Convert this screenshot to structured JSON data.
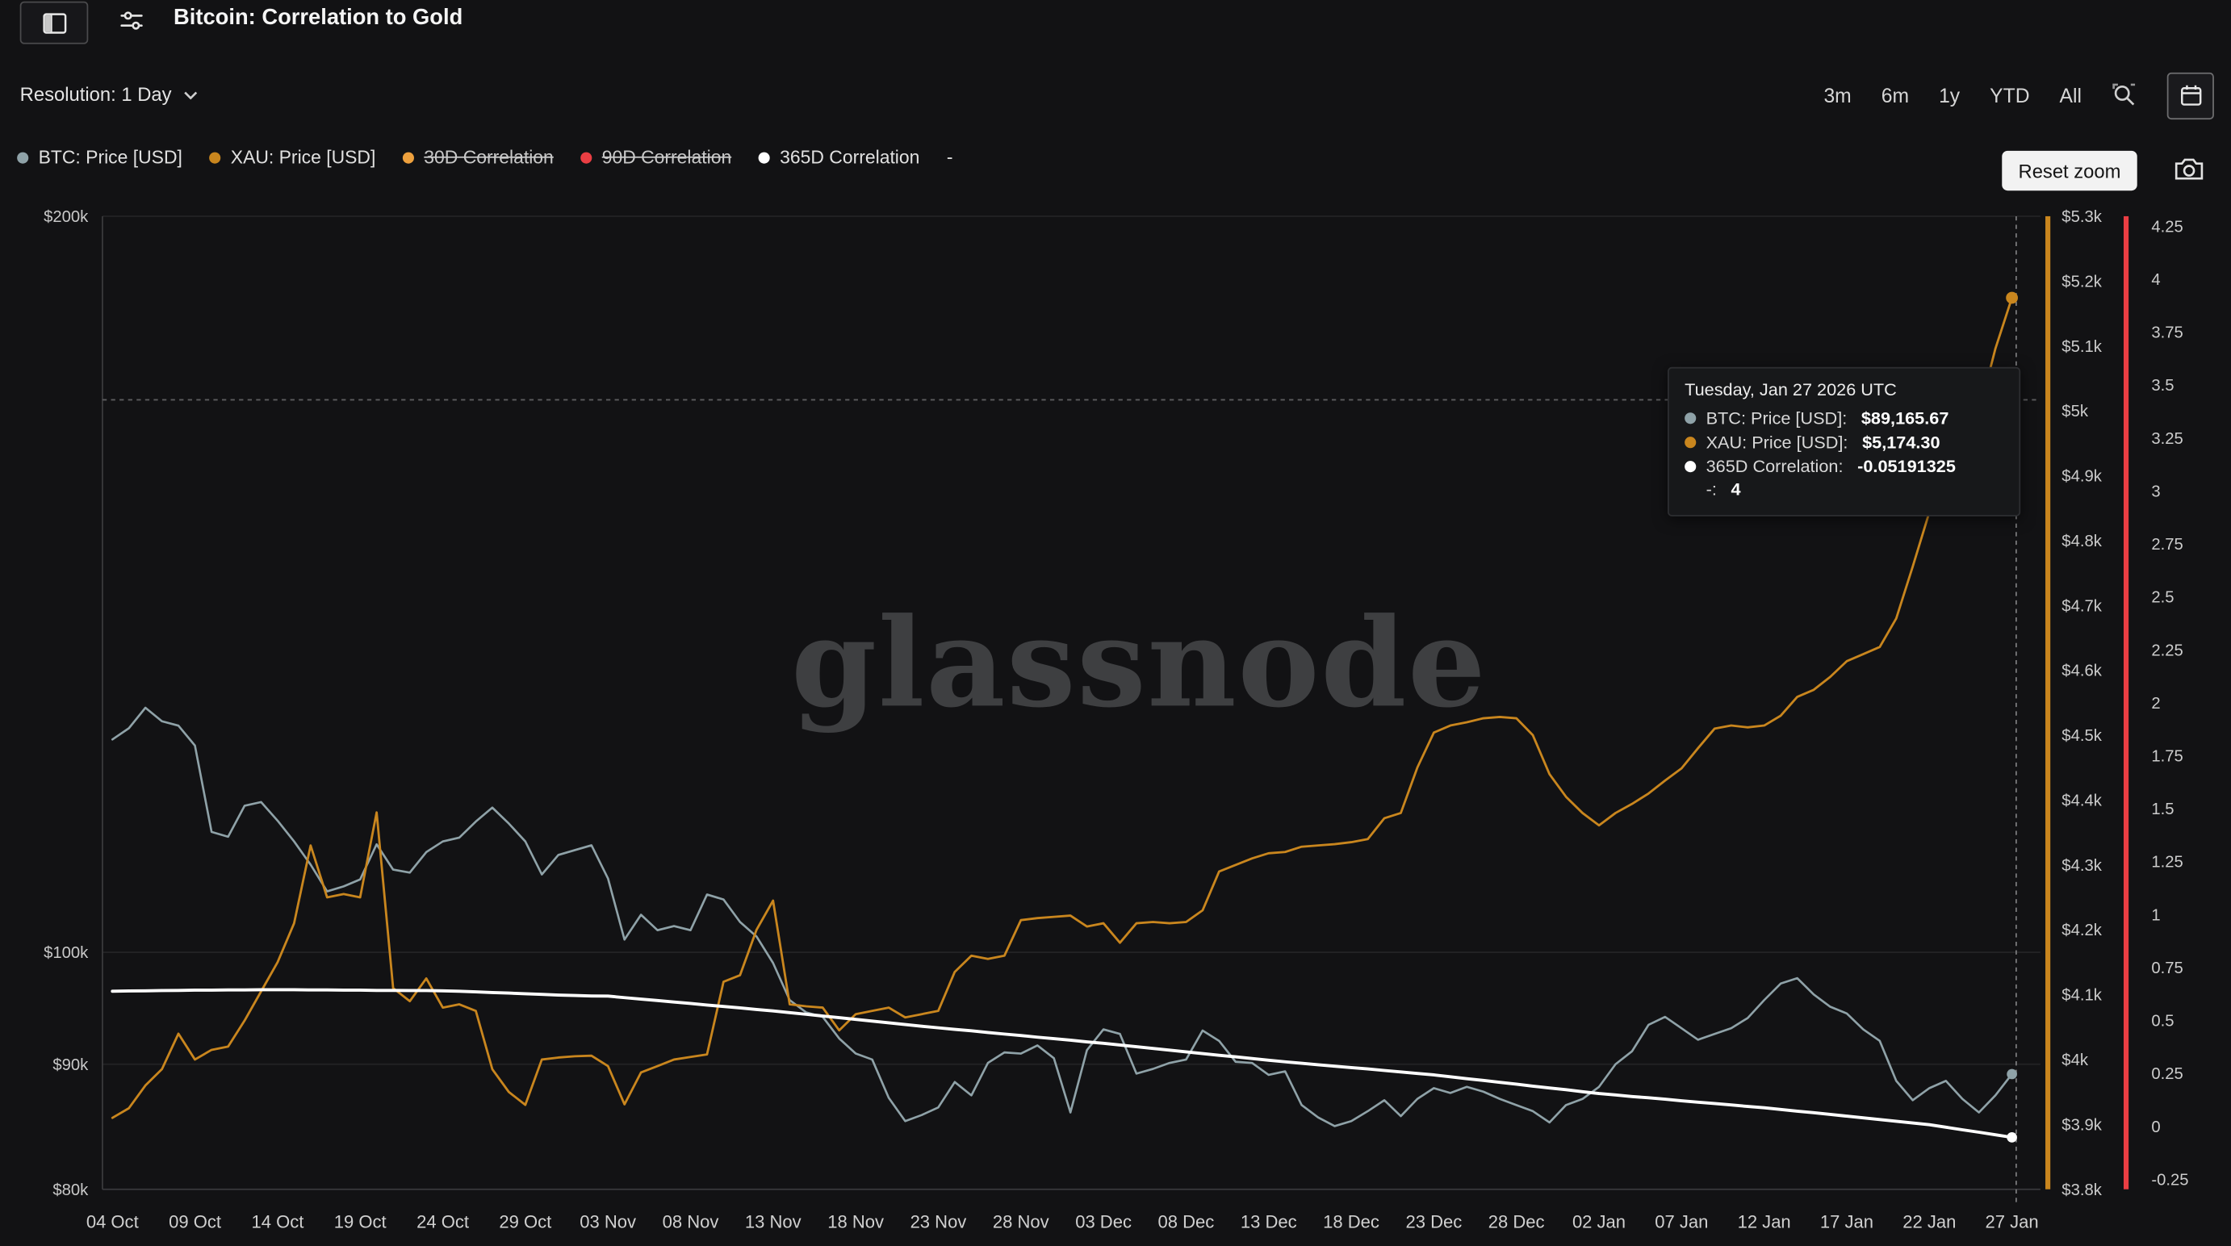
{
  "header": {
    "title": "Bitcoin: Correlation to Gold"
  },
  "toolbar": {
    "resolution_label": "Resolution: 1 Day",
    "ranges": [
      "3m",
      "6m",
      "1y",
      "YTD",
      "All"
    ],
    "reset_zoom_label": "Reset zoom",
    "icons": [
      "sidebar-toggle-icon",
      "chart-settings-icon",
      "chevron-down-icon",
      "zoom-range-icon",
      "calendar-icon",
      "camera-icon"
    ]
  },
  "legend": {
    "items": [
      {
        "label": "BTC: Price [USD]",
        "color": "#8fa2a8",
        "disabled": false
      },
      {
        "label": "XAU: Price [USD]",
        "color": "#c9861e",
        "disabled": false
      },
      {
        "label": "30D Correlation",
        "color": "#eda03d",
        "disabled": true
      },
      {
        "label": "90D Correlation",
        "color": "#ea3e43",
        "disabled": true
      },
      {
        "label": "365D Correlation",
        "color": "#ffffff",
        "disabled": false
      },
      {
        "label": "-",
        "color": "",
        "disabled": false
      }
    ]
  },
  "tooltip": {
    "date": "Tuesday, Jan 27 2026 UTC",
    "rows": [
      {
        "label": "BTC: Price [USD]:",
        "value": "$89,165.67",
        "color": "#8fa2a8"
      },
      {
        "label": "XAU: Price [USD]:",
        "value": "$5,174.30",
        "color": "#c9861e"
      },
      {
        "label": "365D Correlation:",
        "value": "-0.05191325",
        "color": "#ffffff"
      },
      {
        "label": "-:",
        "value": "4",
        "color": ""
      }
    ]
  },
  "watermark": "glassnode",
  "chart_data": {
    "type": "line",
    "start_date": "2025-10-04",
    "end_date": "2026-01-27",
    "resolution": "1 Day",
    "x_tick_labels": [
      "04 Oct",
      "09 Oct",
      "14 Oct",
      "19 Oct",
      "24 Oct",
      "29 Oct",
      "03 Nov",
      "08 Nov",
      "13 Nov",
      "18 Nov",
      "23 Nov",
      "28 Nov",
      "03 Dec",
      "08 Dec",
      "13 Dec",
      "18 Dec",
      "23 Dec",
      "28 Dec",
      "02 Jan",
      "07 Jan",
      "12 Jan",
      "17 Jan",
      "22 Jan",
      "27 Jan"
    ],
    "axes": {
      "left": {
        "scale": "log",
        "min": 80000,
        "max": 200000,
        "ticks": [
          {
            "label": "$200k",
            "value": 200000
          },
          {
            "label": "$100k",
            "value": 100000
          },
          {
            "label": "$90k",
            "value": 90000
          },
          {
            "label": "$80k",
            "value": 80000
          }
        ]
      },
      "right_gold": {
        "scale": "linear",
        "min": 3800,
        "max": 5300,
        "color": "#c9861e",
        "ticks": [
          {
            "label": "$5.3k",
            "value": 5300
          },
          {
            "label": "$5.2k",
            "value": 5200
          },
          {
            "label": "$5.1k",
            "value": 5100
          },
          {
            "label": "$5k",
            "value": 5000
          },
          {
            "label": "$4.9k",
            "value": 4900
          },
          {
            "label": "$4.8k",
            "value": 4800
          },
          {
            "label": "$4.7k",
            "value": 4700
          },
          {
            "label": "$4.6k",
            "value": 4600
          },
          {
            "label": "$4.5k",
            "value": 4500
          },
          {
            "label": "$4.4k",
            "value": 4400
          },
          {
            "label": "$4.3k",
            "value": 4300
          },
          {
            "label": "$4.2k",
            "value": 4200
          },
          {
            "label": "$4.1k",
            "value": 4100
          },
          {
            "label": "$4k",
            "value": 4000
          },
          {
            "label": "$3.9k",
            "value": 3900
          },
          {
            "label": "$3.8k",
            "value": 3800
          }
        ]
      },
      "right_corr": {
        "scale": "linear",
        "min": -0.25,
        "max": 4.25,
        "color": "#ea3e43",
        "ticks": [
          {
            "label": "4.25",
            "value": 4.25
          },
          {
            "label": "4",
            "value": 4
          },
          {
            "label": "3.75",
            "value": 3.75
          },
          {
            "label": "3.5",
            "value": 3.5
          },
          {
            "label": "3.25",
            "value": 3.25
          },
          {
            "label": "3",
            "value": 3
          },
          {
            "label": "2.75",
            "value": 2.75
          },
          {
            "label": "2.5",
            "value": 2.5
          },
          {
            "label": "2.25",
            "value": 2.25
          },
          {
            "label": "2",
            "value": 2
          },
          {
            "label": "1.75",
            "value": 1.75
          },
          {
            "label": "1.5",
            "value": 1.5
          },
          {
            "label": "1.25",
            "value": 1.25
          },
          {
            "label": "1",
            "value": 1
          },
          {
            "label": "0.75",
            "value": 0.75
          },
          {
            "label": "0.5",
            "value": 0.5
          },
          {
            "label": "0.25",
            "value": 0.25
          },
          {
            "label": "0",
            "value": 0
          },
          {
            "label": "-0.25",
            "value": -0.25
          }
        ]
      }
    },
    "hover": {
      "x_label": "27 Jan",
      "gold_value": 5017
    },
    "series": [
      {
        "name": "BTC: Price [USD]",
        "axis": "left",
        "color": "#8fa2a8",
        "width": 1.5,
        "values": [
          122200,
          123500,
          125900,
          124300,
          123800,
          121500,
          112000,
          111500,
          114800,
          115200,
          113200,
          111000,
          108600,
          105900,
          106400,
          107100,
          110700,
          108100,
          107800,
          109900,
          111000,
          111400,
          113100,
          114600,
          112900,
          111000,
          107600,
          109600,
          110100,
          110600,
          107200,
          101200,
          103600,
          102100,
          102500,
          102100,
          105600,
          105100,
          102900,
          101500,
          99000,
          95600,
          94500,
          94100,
          92200,
          90900,
          90400,
          87200,
          85300,
          85800,
          86400,
          88500,
          87400,
          90100,
          91000,
          90900,
          91600,
          90500,
          86000,
          91200,
          93000,
          92600,
          89200,
          89600,
          90100,
          90400,
          92900,
          92000,
          90200,
          90100,
          89100,
          89400,
          86600,
          85600,
          84900,
          85300,
          86100,
          87000,
          85700,
          87100,
          88000,
          87600,
          88100,
          87700,
          87100,
          86600,
          86100,
          85200,
          86600,
          87100,
          88100,
          90000,
          91100,
          93400,
          94100,
          93100,
          92100,
          92600,
          93100,
          94000,
          95600,
          97100,
          97600,
          96100,
          95000,
          94400,
          93000,
          92000,
          88600,
          87000,
          88000,
          88600,
          87100,
          86000,
          87400,
          89165.67
        ]
      },
      {
        "name": "XAU: Price [USD]",
        "axis": "right_gold",
        "color": "#c9861e",
        "width": 1.6,
        "values": [
          3910,
          3925,
          3960,
          3985,
          4040,
          4000,
          4015,
          4020,
          4060,
          4105,
          4150,
          4210,
          4330,
          4250,
          4255,
          4250,
          4381,
          4110,
          4090,
          4125,
          4080,
          4085,
          4075,
          3985,
          3950,
          3930,
          4000,
          4003,
          4005,
          4006,
          3990,
          3931,
          3980,
          3990,
          4000,
          4004,
          4008,
          4120,
          4130,
          4200,
          4245,
          4085,
          4082,
          4080,
          4045,
          4070,
          4075,
          4080,
          4065,
          4070,
          4075,
          4135,
          4160,
          4155,
          4160,
          4215,
          4218,
          4220,
          4222,
          4205,
          4210,
          4180,
          4210,
          4212,
          4210,
          4212,
          4230,
          4290,
          4300,
          4310,
          4318,
          4320,
          4328,
          4330,
          4332,
          4335,
          4340,
          4372,
          4380,
          4450,
          4504,
          4515,
          4520,
          4526,
          4528,
          4526,
          4500,
          4440,
          4405,
          4380,
          4361,
          4380,
          4394,
          4410,
          4430,
          4449,
          4480,
          4510,
          4515,
          4512,
          4515,
          4530,
          4559,
          4570,
          4590,
          4614,
          4625,
          4636,
          4680,
          4760,
          4844,
          4910,
          4950,
          4997,
          5096,
          5174.3
        ]
      },
      {
        "name": "365D Correlation",
        "axis": "right_corr",
        "color": "#ffffff",
        "width": 2.2,
        "values": [
          0.638,
          0.639,
          0.64,
          0.641,
          0.642,
          0.643,
          0.643,
          0.644,
          0.644,
          0.645,
          0.645,
          0.645,
          0.644,
          0.644,
          0.643,
          0.643,
          0.642,
          0.642,
          0.641,
          0.641,
          0.64,
          0.638,
          0.635,
          0.632,
          0.629,
          0.626,
          0.623,
          0.62,
          0.618,
          0.616,
          0.615,
          0.608,
          0.601,
          0.594,
          0.587,
          0.58,
          0.573,
          0.566,
          0.559,
          0.552,
          0.545,
          0.537,
          0.529,
          0.521,
          0.513,
          0.505,
          0.497,
          0.489,
          0.481,
          0.473,
          0.465,
          0.458,
          0.451,
          0.443,
          0.436,
          0.429,
          0.421,
          0.414,
          0.407,
          0.399,
          0.392,
          0.384,
          0.376,
          0.368,
          0.36,
          0.352,
          0.344,
          0.336,
          0.328,
          0.32,
          0.312,
          0.305,
          0.298,
          0.291,
          0.284,
          0.277,
          0.271,
          0.264,
          0.257,
          0.25,
          0.243,
          0.234,
          0.225,
          0.217,
          0.208,
          0.199,
          0.19,
          0.181,
          0.173,
          0.164,
          0.155,
          0.148,
          0.141,
          0.135,
          0.128,
          0.121,
          0.114,
          0.108,
          0.101,
          0.094,
          0.088,
          0.08,
          0.072,
          0.064,
          0.056,
          0.048,
          0.04,
          0.032,
          0.024,
          0.016,
          0.008,
          -0.004,
          -0.016,
          -0.028,
          -0.04,
          -0.05191325
        ]
      }
    ]
  }
}
